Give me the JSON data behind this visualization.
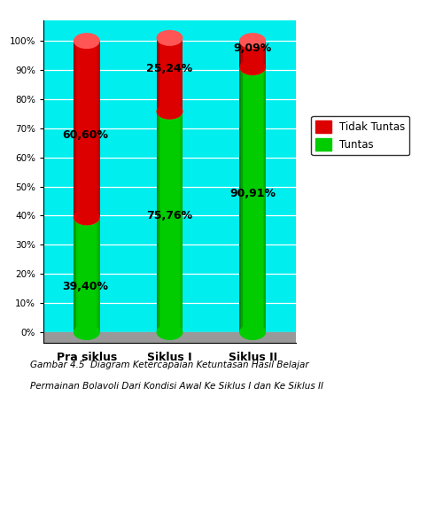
{
  "categories": [
    "Pra siklus",
    "Siklus I",
    "Siklus II"
  ],
  "tuntas": [
    39.4,
    75.76,
    90.91
  ],
  "tidak_tuntas": [
    60.6,
    25.24,
    9.09
  ],
  "color_tuntas": "#00CC00",
  "color_tidak_tuntas": "#DD0000",
  "color_tuntas_light": "#44FF44",
  "color_tidak_tuntas_light": "#FF5555",
  "background_color": "#00EEEE",
  "ylim": [
    0,
    100
  ],
  "yticks": [
    0,
    10,
    20,
    30,
    40,
    50,
    60,
    70,
    80,
    90,
    100
  ],
  "legend_tidak_tuntas": "Tidak Tuntas",
  "legend_tuntas": "Tuntas",
  "caption_line1": "Gambar 4.5  Diagram Ketercapaian Ketuntasan Hasil Belajar",
  "caption_line2": "Permainan Bolavoli Dari Kondisi Awal Ke Siklus I dan Ke Siklus II",
  "label_39": "39,40%",
  "label_60": "60,60%",
  "label_75": "75,76%",
  "label_25": "25,24%",
  "label_90": "90,91%",
  "label_9": "9,09%"
}
